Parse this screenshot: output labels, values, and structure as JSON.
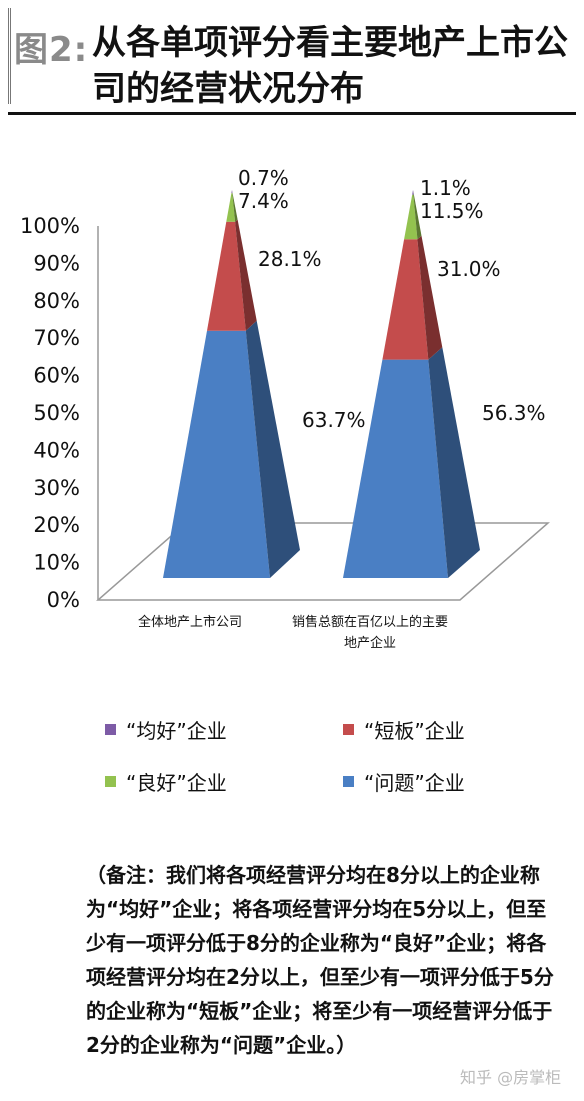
{
  "header": {
    "figure_no": "图2:",
    "title": "从各单项评分看主要地产上市公司的经营状况分布"
  },
  "chart_data": {
    "type": "bar",
    "stacked": true,
    "style": "3d-pyramid",
    "categories": [
      "全体地产上市公司",
      "销售总额在百亿以上的主要地产企业"
    ],
    "series": [
      {
        "name": "“问题”企业",
        "values": [
          63.7,
          56.3
        ],
        "color": "#4a7fc4"
      },
      {
        "name": "“短板”企业",
        "values": [
          28.1,
          31.0
        ],
        "color": "#c44c4c"
      },
      {
        "name": "“良好”企业",
        "values": [
          7.4,
          11.5
        ],
        "color": "#93c24f"
      },
      {
        "name": "“均好”企业",
        "values": [
          0.7,
          1.1
        ],
        "color": "#7d5ba6"
      }
    ],
    "data_labels": [
      [
        "63.7%",
        "28.1%",
        "7.4%",
        "0.7%"
      ],
      [
        "56.3%",
        "31.0%",
        "11.5%",
        "1.1%"
      ]
    ],
    "yticks": [
      "0%",
      "10%",
      "20%",
      "30%",
      "40%",
      "50%",
      "60%",
      "70%",
      "80%",
      "90%",
      "100%"
    ],
    "ylim": [
      0,
      100
    ],
    "legend_position": "bottom"
  },
  "legend": {
    "items": [
      {
        "label": "“均好”企业",
        "color": "#7d5ba6"
      },
      {
        "label": "“短板”企业",
        "color": "#c44c4c"
      },
      {
        "label": "“良好”企业",
        "color": "#93c24f"
      },
      {
        "label": "“问题”企业",
        "color": "#4a7fc4"
      }
    ]
  },
  "note": "（备注：我们将各项经营评分均在8分以上的企业称为“均好”企业；将各项经营评分均在5分以上，但至少有一项评分低于8分的企业称为“良好”企业；将各项经营评分均在2分以上，但至少有一项评分低于5分的企业称为“短板”企业；将至少有一项经营评分低于2分的企业称为“问题”企业。）",
  "watermark": "知乎 @房掌柜"
}
